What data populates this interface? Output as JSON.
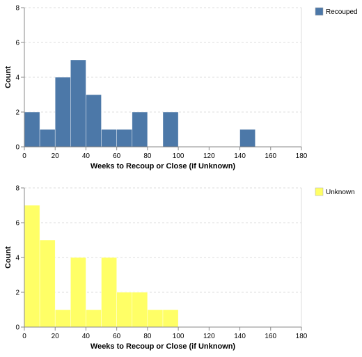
{
  "chart_data": [
    {
      "type": "bar",
      "xlabel": "Weeks to Recoup or Close (if Unknown)",
      "ylabel": "Count",
      "xlim": [
        0,
        180
      ],
      "ylim": [
        0,
        8
      ],
      "x_ticks": [
        0,
        20,
        40,
        60,
        80,
        100,
        120,
        140,
        160,
        180
      ],
      "y_ticks": [
        0,
        2,
        4,
        6,
        8
      ],
      "bin_width": 10,
      "grid": true,
      "legend_position": "top-right",
      "color": "#4c78a8",
      "series": [
        {
          "name": "Recouped",
          "bins": [
            {
              "x0": 0,
              "x1": 10,
              "count": 2
            },
            {
              "x0": 10,
              "x1": 20,
              "count": 1
            },
            {
              "x0": 20,
              "x1": 30,
              "count": 4
            },
            {
              "x0": 30,
              "x1": 40,
              "count": 5
            },
            {
              "x0": 40,
              "x1": 50,
              "count": 3
            },
            {
              "x0": 50,
              "x1": 60,
              "count": 1
            },
            {
              "x0": 60,
              "x1": 70,
              "count": 1
            },
            {
              "x0": 70,
              "x1": 80,
              "count": 2
            },
            {
              "x0": 90,
              "x1": 100,
              "count": 2
            },
            {
              "x0": 140,
              "x1": 150,
              "count": 1
            }
          ]
        }
      ]
    },
    {
      "type": "bar",
      "xlabel": "Weeks to Recoup or Close (if Unknown)",
      "ylabel": "Count",
      "xlim": [
        0,
        180
      ],
      "ylim": [
        0,
        8
      ],
      "x_ticks": [
        0,
        20,
        40,
        60,
        80,
        100,
        120,
        140,
        160,
        180
      ],
      "y_ticks": [
        0,
        2,
        4,
        6,
        8
      ],
      "bin_width": 10,
      "grid": true,
      "legend_position": "top-right",
      "color": "#ffff66",
      "series": [
        {
          "name": "Unknown",
          "bins": [
            {
              "x0": 0,
              "x1": 10,
              "count": 7
            },
            {
              "x0": 10,
              "x1": 20,
              "count": 5
            },
            {
              "x0": 20,
              "x1": 30,
              "count": 1
            },
            {
              "x0": 30,
              "x1": 40,
              "count": 4
            },
            {
              "x0": 40,
              "x1": 50,
              "count": 1
            },
            {
              "x0": 50,
              "x1": 60,
              "count": 4
            },
            {
              "x0": 60,
              "x1": 70,
              "count": 2
            },
            {
              "x0": 70,
              "x1": 80,
              "count": 2
            },
            {
              "x0": 80,
              "x1": 90,
              "count": 1
            },
            {
              "x0": 90,
              "x1": 100,
              "count": 1
            }
          ]
        }
      ]
    }
  ]
}
